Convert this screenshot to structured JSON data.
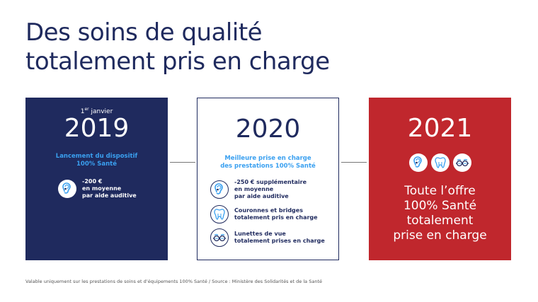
{
  "title": [
    "Des soins de qualité",
    "totalement pris en charge"
  ],
  "colors": {
    "navy": "#1f2a5e",
    "red": "#c0272d",
    "accent": "#3aa0f0"
  },
  "box2019": {
    "date_prefix": "1",
    "date_sup": "er",
    "date_suffix": " janvier",
    "year": "2019",
    "subtitle": [
      "Lancement du dispositif",
      "100% Santé"
    ],
    "items": [
      {
        "icon": "ear-icon",
        "lines": [
          "-200 €",
          "en moyenne",
          "par aide auditive"
        ]
      }
    ]
  },
  "box2020": {
    "year": "2020",
    "subtitle": [
      "Meilleure prise en charge",
      "des prestations 100% Santé"
    ],
    "items": [
      {
        "icon": "ear-icon",
        "lines": [
          "-250 € supplémentaire",
          "en moyenne",
          "par aide auditive"
        ]
      },
      {
        "icon": "tooth-icon",
        "lines": [
          "Couronnes et bridges",
          "totalement pris en charge"
        ]
      },
      {
        "icon": "glasses-icon",
        "lines": [
          "Lunettes de vue",
          "totalement prises en charge"
        ]
      }
    ]
  },
  "box2021": {
    "year": "2021",
    "icons": [
      "ear-icon",
      "tooth-icon",
      "glasses-icon"
    ],
    "text": [
      "Toute l’offre",
      "100% Santé",
      "totalement",
      "prise en charge"
    ]
  },
  "footnote": "Valable uniquement sur les prestations de soins et d’équipements 100% Santé / Source : Ministère des Solidarités et de la Santé"
}
